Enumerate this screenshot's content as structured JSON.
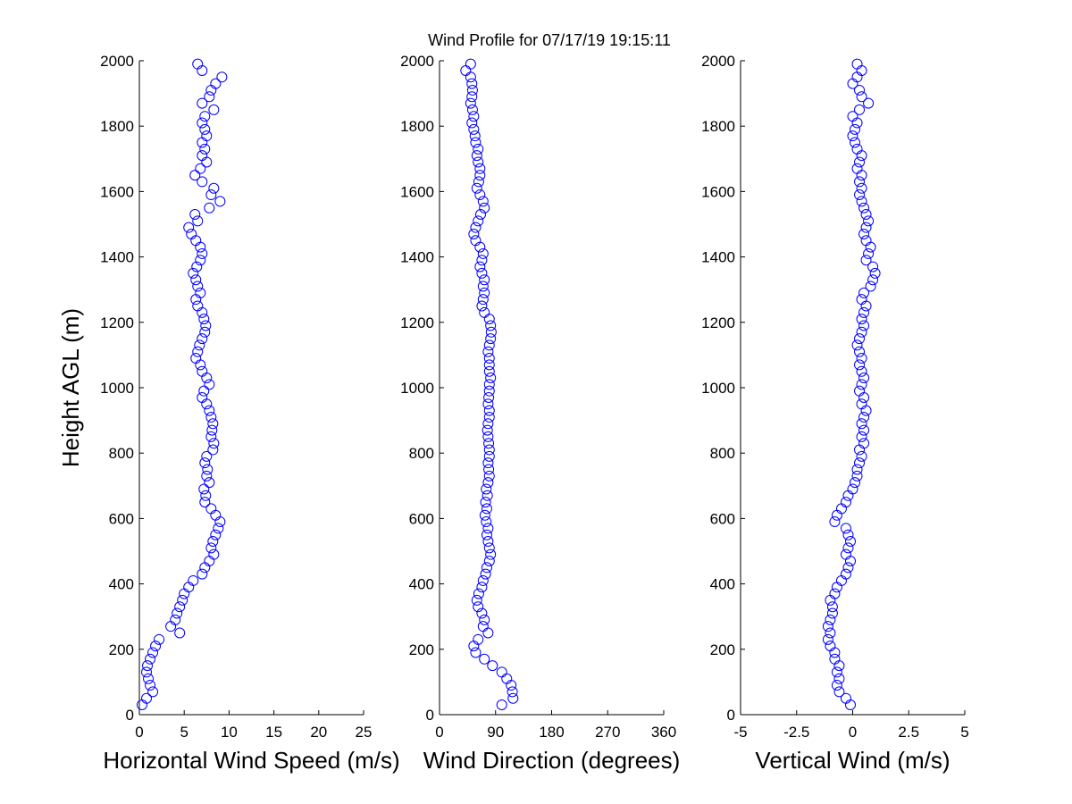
{
  "title": "Wind Profile for  07/17/19 19:15:11",
  "ylabel": "Height AGL (m)",
  "marker_color": "#0000ff",
  "chart_data": [
    {
      "type": "scatter",
      "xlabel": "Horizontal Wind Speed (m/s)",
      "ylabel": "Height AGL (m)",
      "xlim": [
        0,
        25
      ],
      "ylim": [
        0,
        2000
      ],
      "xticks": [
        "0",
        "5",
        "10",
        "15",
        "20",
        "25"
      ],
      "yticks": [
        "0",
        "200",
        "400",
        "600",
        "800",
        "1000",
        "1200",
        "1400",
        "1600",
        "1800",
        "2000"
      ],
      "height": [
        30,
        50,
        70,
        90,
        110,
        130,
        150,
        170,
        190,
        210,
        230,
        250,
        270,
        290,
        310,
        330,
        350,
        370,
        390,
        410,
        430,
        450,
        470,
        490,
        510,
        530,
        550,
        570,
        590,
        610,
        630,
        650,
        670,
        690,
        710,
        730,
        750,
        770,
        790,
        810,
        830,
        850,
        870,
        890,
        910,
        930,
        950,
        970,
        990,
        1010,
        1030,
        1050,
        1070,
        1090,
        1110,
        1130,
        1150,
        1170,
        1190,
        1210,
        1230,
        1250,
        1270,
        1290,
        1310,
        1330,
        1350,
        1370,
        1390,
        1410,
        1430,
        1450,
        1470,
        1490,
        1510,
        1530,
        1550,
        1570,
        1590,
        1610,
        1630,
        1650,
        1670,
        1690,
        1710,
        1730,
        1750,
        1770,
        1790,
        1810,
        1830,
        1850,
        1870,
        1890,
        1910,
        1930,
        1950,
        1970,
        1990
      ],
      "values": [
        0.3,
        0.8,
        1.5,
        1.2,
        1.0,
        0.8,
        0.9,
        1.2,
        1.5,
        1.8,
        2.2,
        4.5,
        3.5,
        4.0,
        4.2,
        4.5,
        4.8,
        5.0,
        5.5,
        6.0,
        7.0,
        7.3,
        7.8,
        8.3,
        8.0,
        8.2,
        8.5,
        8.8,
        9.0,
        8.5,
        8.0,
        7.3,
        7.4,
        7.2,
        7.8,
        7.5,
        7.6,
        7.3,
        7.5,
        8.2,
        8.3,
        8.0,
        8.1,
        8.2,
        8.0,
        7.8,
        7.5,
        7.0,
        7.2,
        7.8,
        7.5,
        7.0,
        6.8,
        6.3,
        6.5,
        6.7,
        7.0,
        7.3,
        7.4,
        7.2,
        7.0,
        6.5,
        6.3,
        6.8,
        6.5,
        6.3,
        6.0,
        6.4,
        6.8,
        7.0,
        6.8,
        6.3,
        5.8,
        5.5,
        6.5,
        6.2,
        7.8,
        9.0,
        8.0,
        8.3,
        7.0,
        6.2,
        6.8,
        7.5,
        7.0,
        7.3,
        7.0,
        7.5,
        7.3,
        7.0,
        7.3,
        8.3,
        7.0,
        7.8,
        8.0,
        8.5,
        9.2,
        7.0,
        6.5
      ]
    },
    {
      "type": "scatter",
      "xlabel": "Wind Direction (degrees)",
      "ylabel": "",
      "xlim": [
        0,
        360
      ],
      "ylim": [
        0,
        2000
      ],
      "xticks": [
        "0",
        "90",
        "180",
        "270",
        "360"
      ],
      "yticks": [
        "0",
        "200",
        "400",
        "600",
        "800",
        "1000",
        "1200",
        "1400",
        "1600",
        "1800",
        "2000"
      ],
      "height": [
        30,
        50,
        70,
        90,
        110,
        130,
        150,
        170,
        190,
        210,
        230,
        250,
        270,
        290,
        310,
        330,
        350,
        370,
        390,
        410,
        430,
        450,
        470,
        490,
        510,
        530,
        550,
        570,
        590,
        610,
        630,
        650,
        670,
        690,
        710,
        730,
        750,
        770,
        790,
        810,
        830,
        850,
        870,
        890,
        910,
        930,
        950,
        970,
        990,
        1010,
        1030,
        1050,
        1070,
        1090,
        1110,
        1130,
        1150,
        1170,
        1190,
        1210,
        1230,
        1250,
        1270,
        1290,
        1310,
        1330,
        1350,
        1370,
        1390,
        1410,
        1430,
        1450,
        1470,
        1490,
        1510,
        1530,
        1550,
        1570,
        1590,
        1610,
        1630,
        1650,
        1670,
        1690,
        1710,
        1730,
        1750,
        1770,
        1790,
        1810,
        1830,
        1850,
        1870,
        1890,
        1910,
        1930,
        1950,
        1970,
        1990
      ],
      "values": [
        100,
        118,
        117,
        115,
        108,
        100,
        85,
        72,
        58,
        55,
        62,
        78,
        70,
        72,
        68,
        62,
        60,
        63,
        68,
        70,
        74,
        76,
        80,
        82,
        80,
        78,
        76,
        78,
        75,
        73,
        76,
        74,
        77,
        75,
        78,
        80,
        79,
        78,
        80,
        80,
        79,
        78,
        77,
        78,
        80,
        80,
        78,
        79,
        80,
        80,
        82,
        80,
        80,
        80,
        78,
        80,
        82,
        83,
        82,
        80,
        72,
        68,
        70,
        72,
        70,
        72,
        68,
        65,
        68,
        70,
        65,
        58,
        55,
        58,
        62,
        66,
        72,
        70,
        65,
        60,
        63,
        65,
        65,
        62,
        60,
        62,
        58,
        57,
        55,
        52,
        55,
        53,
        50,
        52,
        53,
        52,
        50,
        42,
        50
      ]
    },
    {
      "type": "scatter",
      "xlabel": "Vertical Wind (m/s)",
      "ylabel": "",
      "xlim": [
        -5,
        5
      ],
      "ylim": [
        0,
        2000
      ],
      "xticks": [
        "-5",
        "-2.5",
        "0",
        "2.5",
        "5"
      ],
      "yticks": [
        "0",
        "200",
        "400",
        "600",
        "800",
        "1000",
        "1200",
        "1400",
        "1600",
        "1800",
        "2000"
      ],
      "height": [
        30,
        50,
        70,
        90,
        110,
        130,
        150,
        170,
        190,
        210,
        230,
        250,
        270,
        290,
        310,
        330,
        350,
        370,
        390,
        410,
        430,
        450,
        470,
        490,
        510,
        530,
        550,
        570,
        590,
        610,
        630,
        650,
        670,
        690,
        710,
        730,
        750,
        770,
        790,
        810,
        830,
        850,
        870,
        890,
        910,
        930,
        950,
        970,
        990,
        1010,
        1030,
        1050,
        1070,
        1090,
        1110,
        1130,
        1150,
        1170,
        1190,
        1210,
        1230,
        1250,
        1270,
        1290,
        1310,
        1330,
        1350,
        1370,
        1390,
        1410,
        1430,
        1450,
        1470,
        1490,
        1510,
        1530,
        1550,
        1570,
        1590,
        1610,
        1630,
        1650,
        1670,
        1690,
        1710,
        1730,
        1750,
        1770,
        1790,
        1810,
        1830,
        1850,
        1870,
        1890,
        1910,
        1930,
        1950,
        1970,
        1990
      ],
      "values": [
        -0.1,
        -0.3,
        -0.6,
        -0.7,
        -0.6,
        -0.7,
        -0.6,
        -0.8,
        -0.8,
        -1.0,
        -1.1,
        -1.0,
        -1.1,
        -1.0,
        -0.9,
        -0.9,
        -1.0,
        -0.8,
        -0.7,
        -0.5,
        -0.3,
        -0.2,
        -0.1,
        -0.3,
        -0.2,
        -0.1,
        -0.2,
        -0.3,
        -0.8,
        -0.7,
        -0.5,
        -0.3,
        -0.2,
        0.0,
        0.1,
        0.2,
        0.2,
        0.3,
        0.4,
        0.3,
        0.5,
        0.4,
        0.5,
        0.4,
        0.5,
        0.6,
        0.4,
        0.5,
        0.3,
        0.4,
        0.5,
        0.4,
        0.3,
        0.4,
        0.3,
        0.2,
        0.3,
        0.4,
        0.5,
        0.4,
        0.5,
        0.6,
        0.4,
        0.5,
        0.8,
        0.9,
        1.0,
        0.9,
        0.6,
        0.7,
        0.8,
        0.6,
        0.5,
        0.6,
        0.7,
        0.6,
        0.5,
        0.4,
        0.3,
        0.4,
        0.3,
        0.4,
        0.2,
        0.3,
        0.4,
        0.2,
        0.1,
        0.0,
        0.1,
        0.2,
        0.0,
        0.3,
        0.7,
        0.4,
        0.3,
        0.0,
        0.2,
        0.4,
        0.2
      ]
    }
  ]
}
